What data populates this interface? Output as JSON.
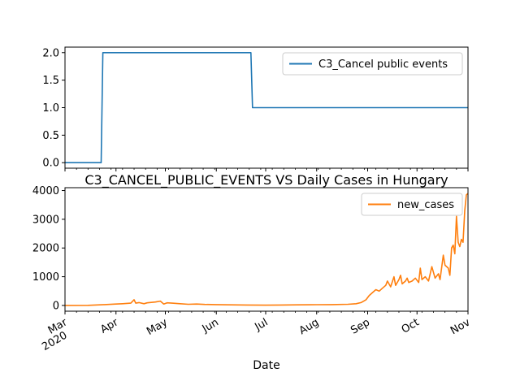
{
  "chart_data": [
    {
      "type": "line",
      "panel": "top",
      "title": "",
      "xlabel": "",
      "ylabel": "",
      "ylim": [
        -0.1,
        2.1
      ],
      "yticks": [
        "0.0",
        "0.5",
        "1.0",
        "1.5",
        "2.0"
      ],
      "xlim": [
        "2020-03-01",
        "2020-11-01"
      ],
      "legend": "top-right",
      "grid": false,
      "series": [
        {
          "name": "C3_Cancel public events",
          "color": "#1f77b4",
          "step": true,
          "x": [
            "2020-03-01",
            "2020-03-23",
            "2020-03-24",
            "2020-06-22",
            "2020-06-23",
            "2020-11-01"
          ],
          "values": [
            0,
            0,
            2,
            2,
            1,
            1
          ]
        }
      ]
    },
    {
      "type": "line",
      "panel": "bottom",
      "title": "C3_CANCEL_PUBLIC_EVENTS VS Daily Cases in Hungary",
      "xlabel": "Date",
      "ylabel": "",
      "ylim": [
        -200,
        4100
      ],
      "yticks": [
        "0",
        "1000",
        "2000",
        "3000",
        "4000"
      ],
      "xlim": [
        "2020-03-01",
        "2020-11-01"
      ],
      "xticks": [
        {
          "date": "2020-03-01",
          "label": "Mar",
          "sub": "2020"
        },
        {
          "date": "2020-04-01",
          "label": "Apr",
          "sub": ""
        },
        {
          "date": "2020-05-01",
          "label": "May",
          "sub": ""
        },
        {
          "date": "2020-06-01",
          "label": "Jun",
          "sub": ""
        },
        {
          "date": "2020-07-01",
          "label": "Jul",
          "sub": ""
        },
        {
          "date": "2020-08-01",
          "label": "Aug",
          "sub": ""
        },
        {
          "date": "2020-09-01",
          "label": "Sep",
          "sub": ""
        },
        {
          "date": "2020-10-01",
          "label": "Oct",
          "sub": ""
        },
        {
          "date": "2020-11-01",
          "label": "Nov",
          "sub": ""
        }
      ],
      "legend": "top-right",
      "grid": false,
      "series": [
        {
          "name": "new_cases",
          "color": "#ff7f0e",
          "x": [
            "2020-03-01",
            "2020-03-15",
            "2020-03-25",
            "2020-04-01",
            "2020-04-05",
            "2020-04-10",
            "2020-04-12",
            "2020-04-13",
            "2020-04-15",
            "2020-04-18",
            "2020-04-20",
            "2020-04-25",
            "2020-04-28",
            "2020-04-30",
            "2020-05-02",
            "2020-05-05",
            "2020-05-10",
            "2020-05-15",
            "2020-05-20",
            "2020-05-25",
            "2020-06-01",
            "2020-06-10",
            "2020-06-20",
            "2020-07-01",
            "2020-07-10",
            "2020-07-20",
            "2020-08-01",
            "2020-08-10",
            "2020-08-20",
            "2020-08-25",
            "2020-08-28",
            "2020-08-31",
            "2020-09-02",
            "2020-09-04",
            "2020-09-06",
            "2020-09-08",
            "2020-09-10",
            "2020-09-12",
            "2020-09-13",
            "2020-09-15",
            "2020-09-17",
            "2020-09-18",
            "2020-09-20",
            "2020-09-21",
            "2020-09-22",
            "2020-09-24",
            "2020-09-25",
            "2020-09-26",
            "2020-09-28",
            "2020-09-30",
            "2020-10-02",
            "2020-10-03",
            "2020-10-04",
            "2020-10-06",
            "2020-10-08",
            "2020-10-10",
            "2020-10-12",
            "2020-10-14",
            "2020-10-15",
            "2020-10-17",
            "2020-10-18",
            "2020-10-20",
            "2020-10-21",
            "2020-10-22",
            "2020-10-23",
            "2020-10-24",
            "2020-10-25",
            "2020-10-26",
            "2020-10-27",
            "2020-10-28",
            "2020-10-29",
            "2020-10-30",
            "2020-10-31",
            "2020-11-01"
          ],
          "values": [
            0,
            5,
            30,
            50,
            60,
            80,
            200,
            80,
            100,
            60,
            90,
            120,
            150,
            50,
            90,
            80,
            60,
            40,
            50,
            35,
            30,
            20,
            15,
            10,
            15,
            20,
            25,
            30,
            40,
            60,
            100,
            200,
            350,
            450,
            550,
            500,
            600,
            700,
            850,
            650,
            1000,
            700,
            900,
            1050,
            750,
            850,
            950,
            800,
            850,
            950,
            800,
            1300,
            900,
            1000,
            850,
            1350,
            950,
            1100,
            900,
            1750,
            1400,
            1300,
            1050,
            2000,
            2100,
            1800,
            3100,
            2200,
            2050,
            2300,
            2200,
            3300,
            3850,
            3900
          ]
        }
      ]
    }
  ]
}
